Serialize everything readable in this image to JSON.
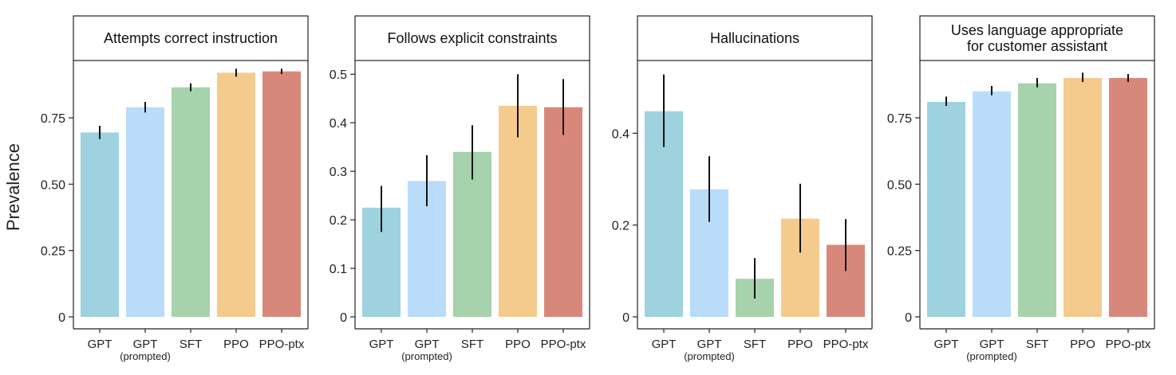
{
  "figure": {
    "ylabel": "Prevalence"
  },
  "colors": [
    "#9dd2de",
    "#b9dcfb",
    "#a6d2ac",
    "#f4cb8d",
    "#d8887a"
  ],
  "chart_data": [
    {
      "type": "bar",
      "title": "Attempts correct instruction",
      "categories": [
        "GPT",
        "GPT",
        "SFT",
        "PPO",
        "PPO-ptx"
      ],
      "category_sublabels": [
        "",
        "(prompted)",
        "",
        "",
        ""
      ],
      "values": [
        0.695,
        0.79,
        0.865,
        0.92,
        0.925
      ],
      "error_low": [
        0.67,
        0.77,
        0.85,
        0.905,
        0.915
      ],
      "error_high": [
        0.72,
        0.81,
        0.88,
        0.935,
        0.935
      ],
      "ylim": [
        0,
        0.96
      ],
      "yticks": [
        0,
        0.25,
        0.5,
        0.75
      ],
      "ytick_labels": [
        "0",
        "0.25",
        "0.50",
        "0.75"
      ],
      "grid": false
    },
    {
      "type": "bar",
      "title": "Follows explicit constraints",
      "categories": [
        "GPT",
        "GPT",
        "SFT",
        "PPO",
        "PPO-ptx"
      ],
      "category_sublabels": [
        "",
        "(prompted)",
        "",
        "",
        ""
      ],
      "values": [
        0.225,
        0.28,
        0.34,
        0.435,
        0.432
      ],
      "error_low": [
        0.175,
        0.228,
        0.283,
        0.37,
        0.375
      ],
      "error_high": [
        0.27,
        0.333,
        0.395,
        0.5,
        0.49
      ],
      "ylim": [
        0,
        0.525
      ],
      "yticks": [
        0,
        0.1,
        0.2,
        0.3,
        0.4,
        0.5
      ],
      "ytick_labels": [
        "0",
        "0.1",
        "0.2",
        "0.3",
        "0.4",
        "0.5"
      ],
      "grid": false
    },
    {
      "type": "bar",
      "title": "Hallucinations",
      "categories": [
        "GPT",
        "GPT",
        "SFT",
        "PPO",
        "PPO-ptx"
      ],
      "category_sublabels": [
        "",
        "(prompted)",
        "",
        "",
        ""
      ],
      "values": [
        0.448,
        0.278,
        0.083,
        0.214,
        0.157
      ],
      "error_low": [
        0.37,
        0.207,
        0.04,
        0.14,
        0.1
      ],
      "error_high": [
        0.528,
        0.35,
        0.128,
        0.29,
        0.213
      ],
      "ylim": [
        0,
        0.555
      ],
      "yticks": [
        0,
        0.2,
        0.4
      ],
      "ytick_labels": [
        "0",
        "0.2",
        "0.4"
      ],
      "grid": false
    },
    {
      "type": "bar",
      "title": "Uses language appropriate\nfor customer assistant",
      "categories": [
        "GPT",
        "GPT",
        "SFT",
        "PPO",
        "PPO-ptx"
      ],
      "category_sublabels": [
        "",
        "(prompted)",
        "",
        "",
        ""
      ],
      "values": [
        0.81,
        0.85,
        0.88,
        0.9,
        0.9
      ],
      "error_low": [
        0.795,
        0.835,
        0.865,
        0.885,
        0.885
      ],
      "error_high": [
        0.83,
        0.87,
        0.9,
        0.92,
        0.915
      ],
      "ylim": [
        0,
        0.96
      ],
      "yticks": [
        0,
        0.25,
        0.5,
        0.75
      ],
      "ytick_labels": [
        "0",
        "0.25",
        "0.50",
        "0.75"
      ],
      "grid": false
    }
  ]
}
